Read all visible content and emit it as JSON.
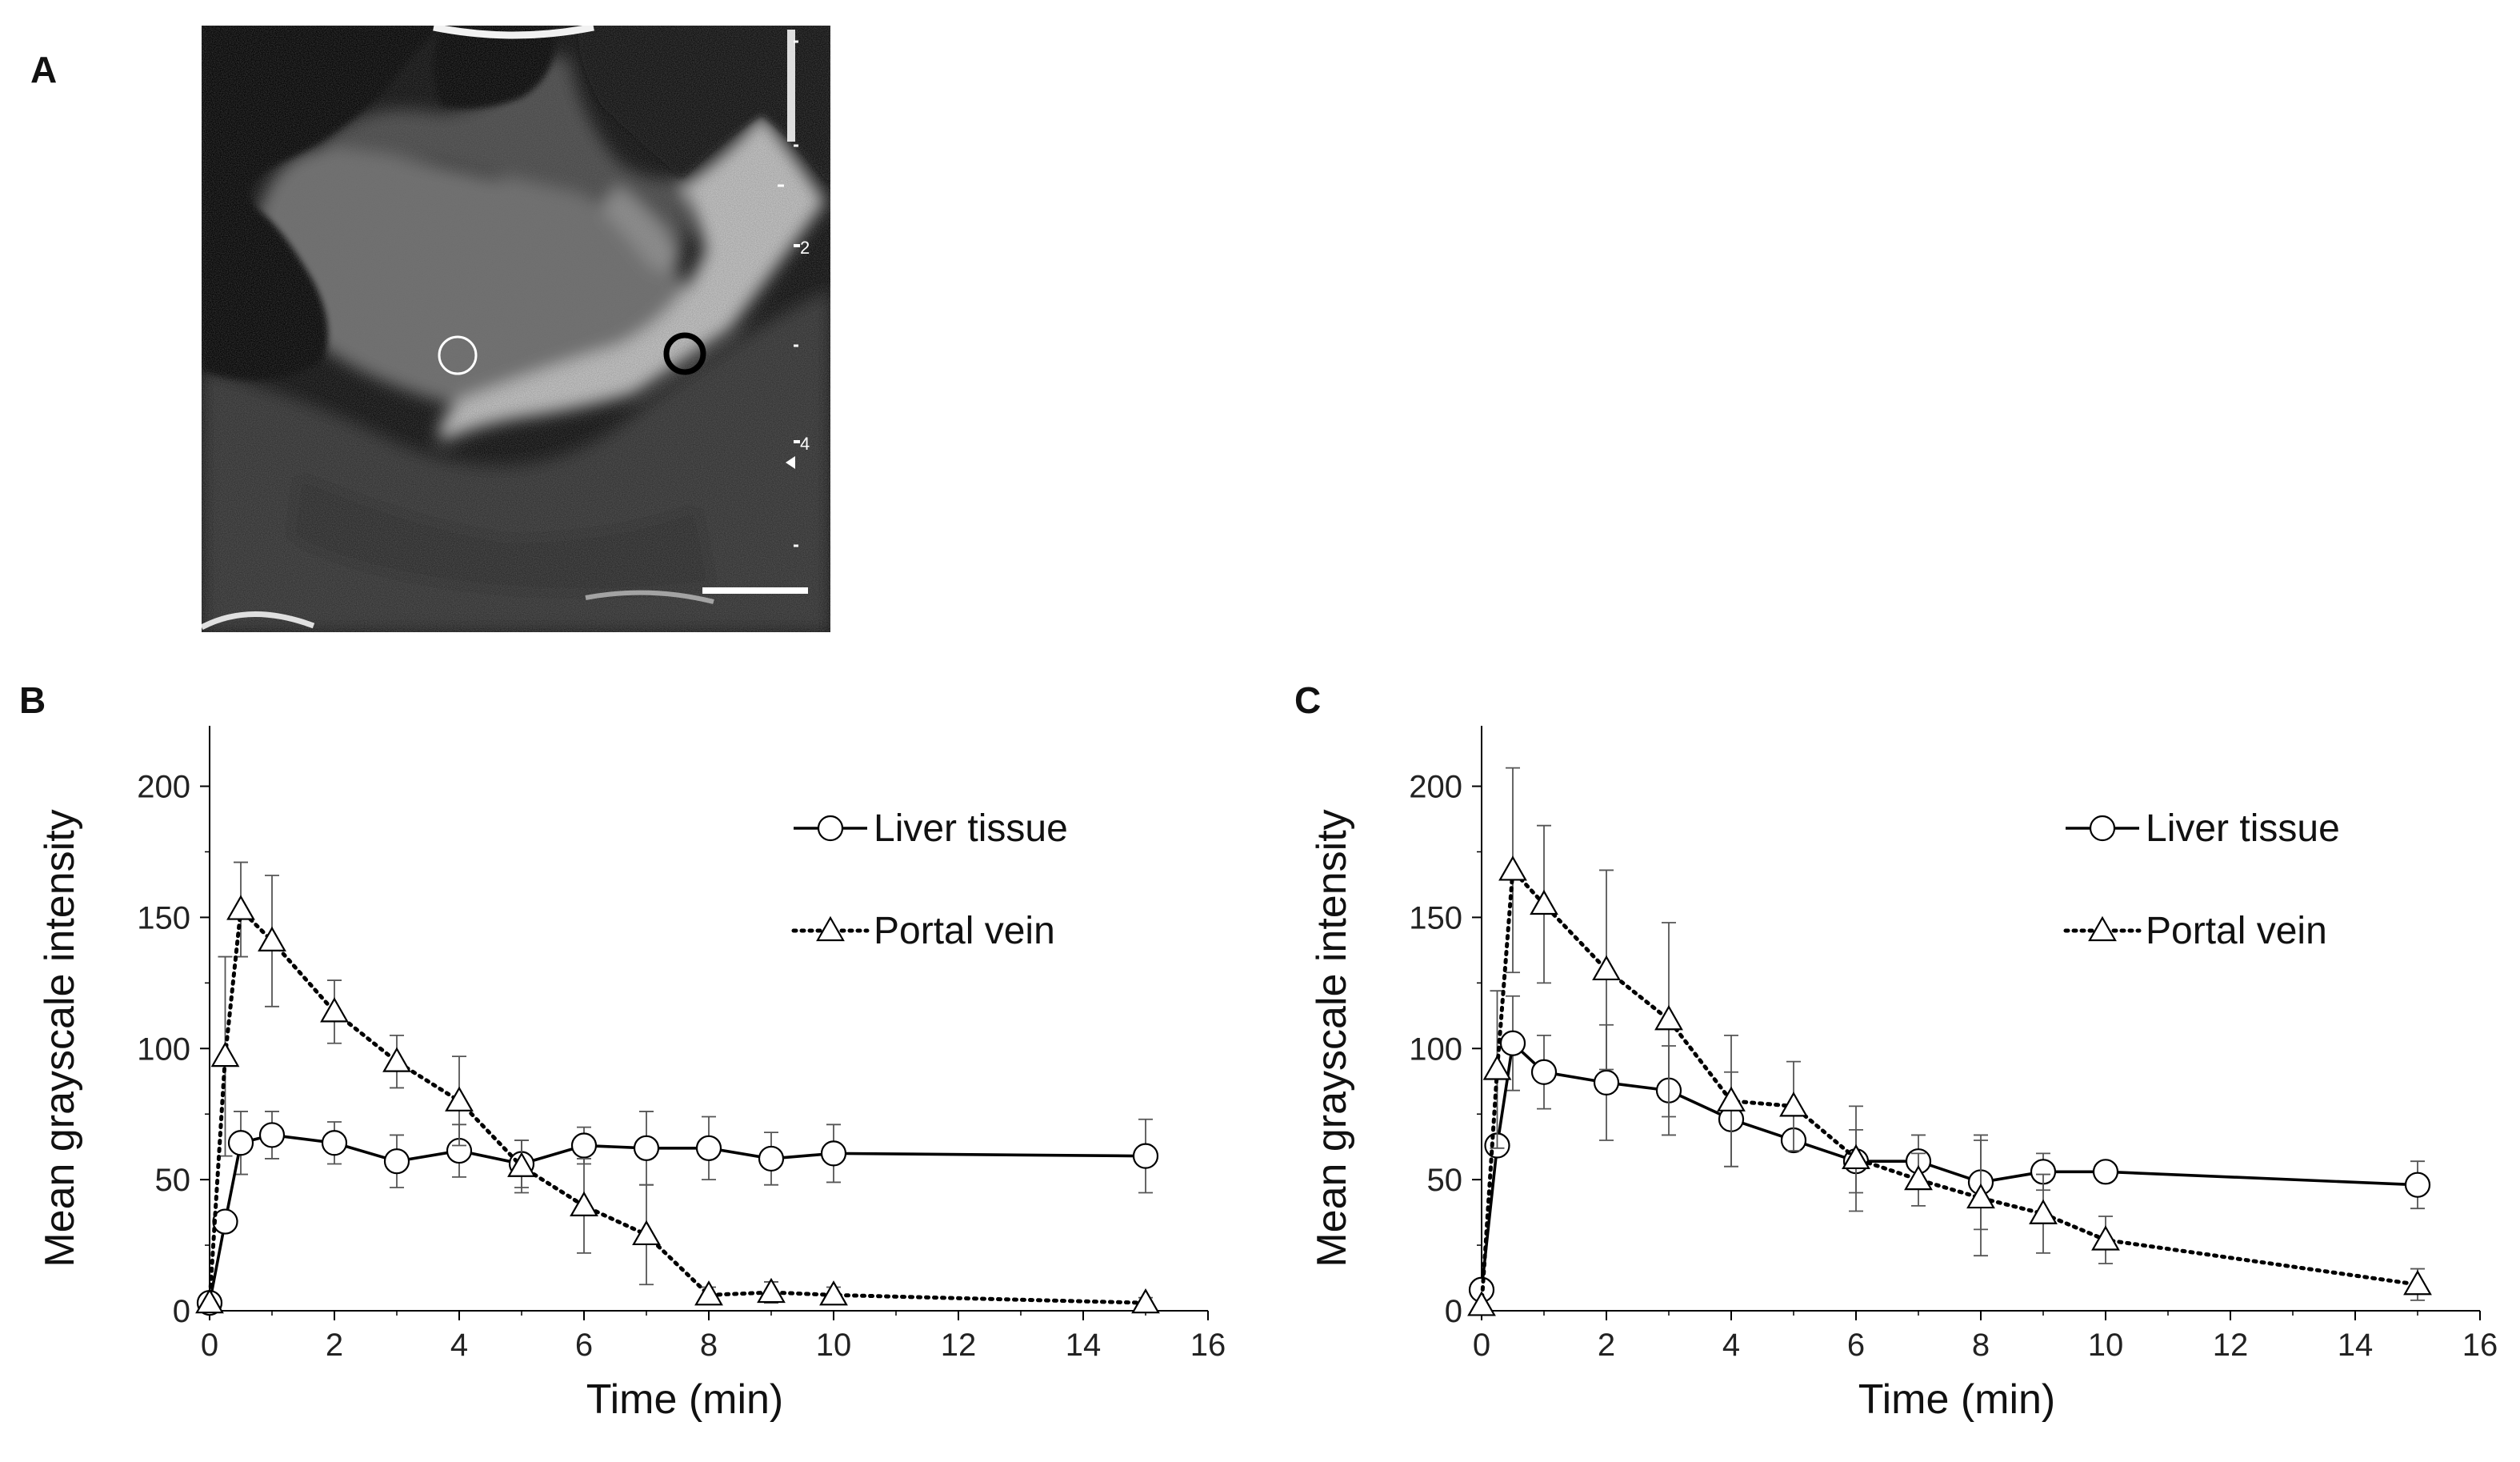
{
  "panels": {
    "a": {
      "label": "A"
    },
    "b": {
      "label": "B"
    },
    "c": {
      "label": "C"
    }
  },
  "ultrasound": {
    "depth_marks": [
      "2",
      "4"
    ],
    "roi_colors": {
      "liver_tissue": "#ffffff",
      "portal_vein": "#000000"
    }
  },
  "colors": {
    "axis": "#000000",
    "error_bar": "#555555",
    "background": "#ffffff"
  },
  "chart_data": [
    {
      "panel": "B",
      "type": "line",
      "xlabel": "Time (min)",
      "ylabel": "Mean grayscale intensity",
      "xlim": [
        0,
        16
      ],
      "ylim": [
        0,
        220
      ],
      "xticks": [
        0,
        2,
        4,
        6,
        8,
        10,
        12,
        14,
        16
      ],
      "yticks": [
        0,
        50,
        100,
        150,
        200
      ],
      "legend_position": "top-right",
      "series": [
        {
          "name": "Liver tissue",
          "marker": "circle",
          "line": "solid",
          "x": [
            0,
            0.25,
            0.5,
            1,
            2,
            3,
            4,
            5,
            6,
            7,
            8,
            9,
            10,
            15
          ],
          "y": [
            3,
            34,
            64,
            67,
            64,
            57,
            61,
            56,
            63,
            62,
            62,
            58,
            60,
            59
          ],
          "error": [
            0,
            0,
            12,
            9,
            8,
            10,
            10,
            9,
            7,
            14,
            12,
            10,
            11,
            14
          ]
        },
        {
          "name": "Portal vein",
          "marker": "triangle",
          "line": "dotted",
          "x": [
            0,
            0.25,
            0.5,
            1,
            2,
            3,
            4,
            5,
            6,
            7,
            8,
            9,
            10,
            15
          ],
          "y": [
            3,
            97,
            153,
            141,
            114,
            95,
            80,
            55,
            40,
            29,
            6,
            7,
            6,
            3
          ],
          "error": [
            0,
            38,
            18,
            25,
            12,
            10,
            17,
            10,
            18,
            19,
            3,
            4,
            3,
            2
          ]
        }
      ]
    },
    {
      "panel": "C",
      "type": "line",
      "xlabel": "Time (min)",
      "ylabel": "Mean grayscale intensity",
      "xlim": [
        0,
        16
      ],
      "ylim": [
        0,
        220
      ],
      "xticks": [
        0,
        2,
        4,
        6,
        8,
        10,
        12,
        14,
        16
      ],
      "yticks": [
        0,
        50,
        100,
        150,
        200
      ],
      "legend_position": "top-right",
      "series": [
        {
          "name": "Liver tissue",
          "marker": "circle",
          "line": "solid",
          "x": [
            0,
            0.25,
            0.5,
            1,
            2,
            3,
            4,
            5,
            6,
            7,
            8,
            9,
            10,
            15
          ],
          "y": [
            8,
            63,
            102,
            91,
            87,
            84,
            73,
            65,
            57,
            57,
            49,
            53,
            53,
            48
          ],
          "error": [
            0,
            0,
            18,
            14,
            22,
            17,
            18,
            0,
            12,
            10,
            18,
            7,
            0,
            9
          ]
        },
        {
          "name": "Portal vein",
          "marker": "triangle",
          "line": "dotted",
          "x": [
            0,
            0.25,
            0.5,
            1,
            2,
            3,
            4,
            5,
            6,
            7,
            8,
            9,
            10,
            15
          ],
          "y": [
            2,
            92,
            168,
            155,
            130,
            111,
            80,
            78,
            58,
            50,
            43,
            37,
            27,
            10
          ],
          "error": [
            0,
            30,
            39,
            30,
            38,
            37,
            25,
            17,
            20,
            10,
            22,
            15,
            9,
            6
          ]
        }
      ]
    }
  ]
}
